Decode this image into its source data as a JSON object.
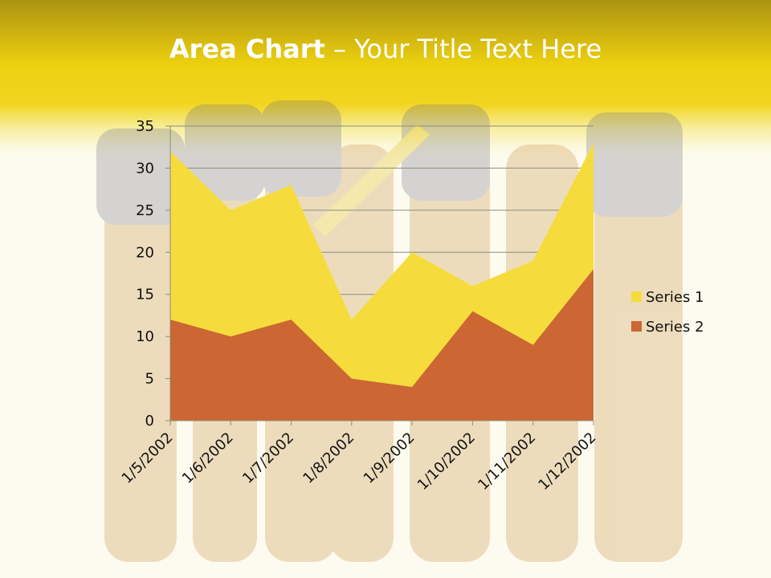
{
  "slide": {
    "title_bold": "Area Chart",
    "title_rest": " – Your Title Text Here"
  },
  "colors": {
    "series1": "#f5dc3c",
    "series2": "#cc6633",
    "grid": "#8c8c7a",
    "band": "#f2d520"
  },
  "chart_data": {
    "type": "area",
    "stacked": false,
    "categories": [
      "1/5/2002",
      "1/6/2002",
      "1/7/2002",
      "1/8/2002",
      "1/9/2002",
      "1/10/2002",
      "1/11/2002",
      "1/12/2002"
    ],
    "series": [
      {
        "name": "Series 1",
        "values": [
          32,
          25,
          28,
          12,
          20,
          16,
          19,
          33
        ]
      },
      {
        "name": "Series 2",
        "values": [
          12,
          10,
          12,
          5,
          4,
          13,
          9,
          18
        ]
      }
    ],
    "ylim": [
      0,
      35
    ],
    "yticks": [
      0,
      5,
      10,
      15,
      20,
      25,
      30,
      35
    ],
    "grid": true,
    "legend": "right"
  }
}
